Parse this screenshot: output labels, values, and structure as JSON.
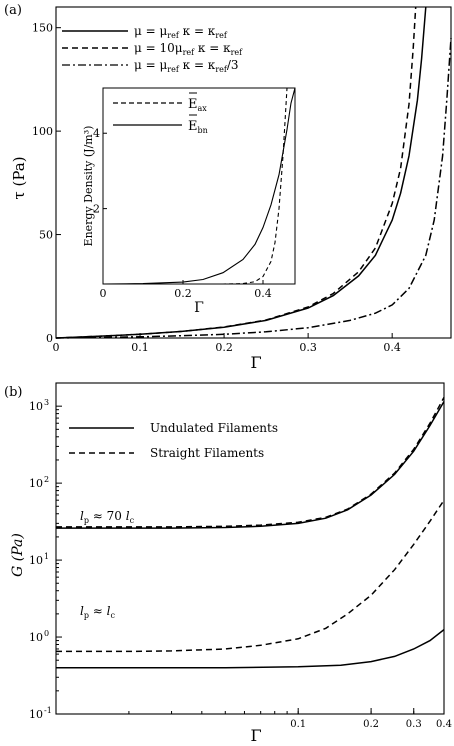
{
  "chart_data": [
    {
      "panel_label": "(a)",
      "type": "line",
      "xlabel": "Γ",
      "ylabel": "τ  (Pa)",
      "xlim": [
        0,
        0.47
      ],
      "ylim": [
        0,
        160
      ],
      "xticks": [
        0,
        0.1,
        0.2,
        0.3,
        0.4
      ],
      "xtick_labels": [
        "0",
        "0.1",
        "0.2",
        "0.3",
        "0.4"
      ],
      "yticks": [
        0,
        50,
        100,
        150
      ],
      "ytick_labels": [
        "0",
        "50",
        "100",
        "150"
      ],
      "legend_position": "top-left",
      "series": [
        {
          "name": "μ = μref   κ = κref",
          "style": "solid",
          "x": [
            0,
            0.05,
            0.1,
            0.15,
            0.2,
            0.25,
            0.3,
            0.33,
            0.36,
            0.38,
            0.4,
            0.41,
            0.42,
            0.43,
            0.435,
            0.44
          ],
          "y": [
            0,
            0.8,
            1.8,
            3.2,
            5.2,
            8.5,
            14.5,
            20.5,
            30,
            40,
            57,
            70,
            88,
            115,
            135,
            160
          ]
        },
        {
          "name": "μ = 10μref  κ = κref",
          "style": "dashed",
          "x": [
            0,
            0.05,
            0.1,
            0.15,
            0.2,
            0.25,
            0.3,
            0.33,
            0.36,
            0.38,
            0.4,
            0.41,
            0.42,
            0.425,
            0.428
          ],
          "y": [
            0,
            0.8,
            1.8,
            3.2,
            5.3,
            8.7,
            15,
            21.5,
            32,
            43.5,
            65,
            82,
            113,
            140,
            160
          ]
        },
        {
          "name": "μ = μref   κ = κref/3",
          "style": "dashdot",
          "x": [
            0,
            0.05,
            0.1,
            0.15,
            0.2,
            0.25,
            0.3,
            0.35,
            0.38,
            0.4,
            0.42,
            0.44,
            0.45,
            0.46,
            0.465,
            0.47
          ],
          "y": [
            0,
            0.3,
            0.6,
            1.1,
            1.8,
            3,
            5,
            8.5,
            12,
            16,
            24,
            40,
            57,
            88,
            115,
            145
          ]
        }
      ],
      "inset": {
        "type": "line",
        "xlabel": "Γ",
        "ylabel": "Energy Density (J/m³)",
        "xlim": [
          0,
          0.48
        ],
        "ylim": [
          0,
          5.2
        ],
        "xticks": [
          0,
          0.2,
          0.4
        ],
        "xtick_labels": [
          "0",
          "0.2",
          "0.4"
        ],
        "yticks": [
          0,
          2,
          4
        ],
        "ytick_labels": [
          "0",
          "2",
          "4"
        ],
        "series": [
          {
            "name": "Ēax",
            "name_main": "E",
            "name_sub": "ax",
            "style": "dashed",
            "x": [
              0,
              0.3,
              0.35,
              0.38,
              0.4,
              0.42,
              0.43,
              0.44,
              0.45,
              0.455,
              0.46
            ],
            "y": [
              0,
              0,
              0.01,
              0.06,
              0.2,
              0.6,
              1.1,
              2.0,
              3.4,
              4.3,
              5.2
            ]
          },
          {
            "name": "Ēbn",
            "name_main": "E",
            "name_sub": "bn",
            "style": "solid",
            "x": [
              0,
              0.1,
              0.2,
              0.25,
              0.3,
              0.35,
              0.38,
              0.4,
              0.42,
              0.44,
              0.46,
              0.47,
              0.48
            ],
            "y": [
              0,
              0.01,
              0.05,
              0.12,
              0.3,
              0.65,
              1.05,
              1.5,
              2.1,
              2.9,
              4.1,
              4.8,
              5.2
            ]
          }
        ]
      }
    },
    {
      "panel_label": "(b)",
      "type": "line",
      "xlabel": "Γ",
      "ylabel": "G (Pa)",
      "xscale": "log",
      "yscale": "log",
      "xlim": [
        0.01,
        0.4
      ],
      "ylim": [
        0.1,
        2000
      ],
      "xticks": [
        0.1,
        0.2,
        0.3,
        0.4
      ],
      "xtick_labels": [
        "0.1",
        "0.2",
        "0.3",
        "0.4"
      ],
      "yticks": [
        0.1,
        1,
        10,
        100,
        1000
      ],
      "ytick_labels": [
        "10",
        "10",
        "10",
        "10",
        "10"
      ],
      "ytick_exponents": [
        "-1",
        "0",
        "1",
        "2",
        "3"
      ],
      "legend_position": "top-left",
      "annotations": [
        {
          "text_l": "l",
          "text_sub": "p",
          "text_rel": " ≈ 70 ",
          "text_l2": "l",
          "text_sub2": "c"
        },
        {
          "text_l": "l",
          "text_sub": "p",
          "text_rel": " ≈ ",
          "text_l2": "l",
          "text_sub2": "c"
        }
      ],
      "series": [
        {
          "name": "Undulated Filaments",
          "style": "solid",
          "group": "high",
          "x": [
            0.01,
            0.02,
            0.03,
            0.05,
            0.07,
            0.1,
            0.13,
            0.16,
            0.2,
            0.25,
            0.3,
            0.35,
            0.4
          ],
          "y": [
            26,
            26,
            26,
            26.5,
            27.5,
            30,
            35,
            45,
            70,
            130,
            260,
            560,
            1150
          ]
        },
        {
          "name": "Straight Filaments",
          "style": "dashed",
          "group": "high",
          "x": [
            0.01,
            0.02,
            0.03,
            0.05,
            0.07,
            0.1,
            0.13,
            0.16,
            0.2,
            0.25,
            0.3,
            0.35,
            0.4
          ],
          "y": [
            27,
            27,
            27,
            27.5,
            28.5,
            31,
            36,
            46,
            72,
            135,
            275,
            600,
            1300
          ]
        },
        {
          "name": "Undulated Filaments",
          "style": "solid",
          "group": "low",
          "x": [
            0.01,
            0.03,
            0.05,
            0.1,
            0.15,
            0.2,
            0.25,
            0.3,
            0.35,
            0.4
          ],
          "y": [
            0.4,
            0.4,
            0.4,
            0.41,
            0.43,
            0.48,
            0.56,
            0.7,
            0.9,
            1.25
          ]
        },
        {
          "name": "Straight Filaments",
          "style": "dashed",
          "group": "low",
          "x": [
            0.01,
            0.02,
            0.03,
            0.05,
            0.07,
            0.1,
            0.13,
            0.16,
            0.2,
            0.25,
            0.3,
            0.35,
            0.4
          ],
          "y": [
            0.65,
            0.65,
            0.66,
            0.7,
            0.78,
            0.95,
            1.3,
            2,
            3.5,
            7.5,
            16,
            32,
            60
          ]
        }
      ]
    }
  ]
}
